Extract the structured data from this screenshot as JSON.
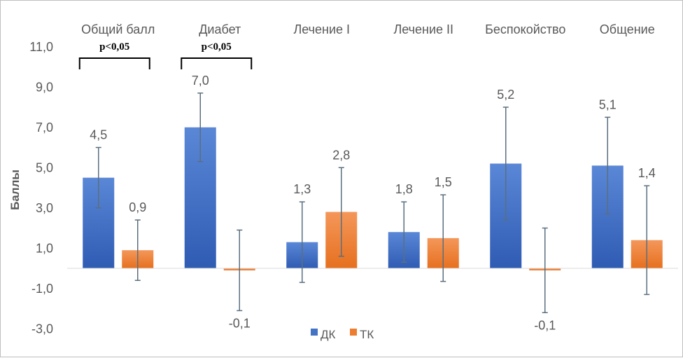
{
  "chart_data": {
    "type": "bar",
    "title": "",
    "ylabel": "Баллы",
    "xlabel": "",
    "ylim": [
      -3,
      11
    ],
    "yticks": [
      "11,0",
      "9,0",
      "7,0",
      "5,0",
      "3,0",
      "1,0",
      "-1,0",
      "-3,0"
    ],
    "ytick_values": [
      11,
      9,
      7,
      5,
      3,
      1,
      -1,
      -3
    ],
    "categories": [
      "Общий балл",
      "Диабет",
      "Лечение I",
      "Лечение II",
      "Беспокойство",
      "Общение"
    ],
    "series": [
      {
        "name": "ДК",
        "color": "#4472c4",
        "values": [
          4.5,
          7.0,
          1.3,
          1.8,
          5.2,
          5.1
        ],
        "labels": [
          "4,5",
          "7,0",
          "1,3",
          "1,8",
          "5,2",
          "5,1"
        ],
        "errors": [
          1.5,
          1.7,
          2.0,
          1.5,
          2.8,
          2.4
        ]
      },
      {
        "name": "ТК",
        "color": "#ed7d31",
        "values": [
          0.9,
          -0.1,
          2.8,
          1.5,
          -0.1,
          1.4
        ],
        "labels": [
          "0,9",
          "-0,1",
          "2,8",
          "1,5",
          "-0,1",
          "1,4"
        ],
        "errors": [
          1.5,
          2.0,
          2.2,
          2.15,
          2.1,
          2.7
        ]
      }
    ],
    "annotations": [
      {
        "text": "p<0,05",
        "category_index": 0
      },
      {
        "text": "p<0,05",
        "category_index": 1
      }
    ],
    "legend_position": "bottom",
    "grid": false
  }
}
